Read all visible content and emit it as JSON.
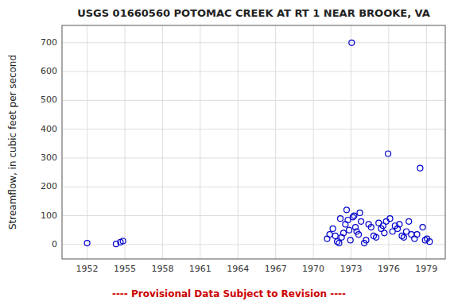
{
  "chart_data": {
    "type": "scatter",
    "title": "USGS 01660560 POTOMAC CREEK AT RT 1 NEAR BROOKE, VA",
    "ylabel": "Streamflow, in cubic feet per second",
    "annotation": "---- Provisional Data Subject to Revision ----",
    "xlim": [
      1950.0,
      1980.5
    ],
    "ylim": [
      -50,
      760
    ],
    "xticks": [
      1952,
      1955,
      1958,
      1961,
      1964,
      1967,
      1970,
      1973,
      1976,
      1979
    ],
    "yticks": [
      0,
      100,
      200,
      300,
      400,
      500,
      600,
      700
    ],
    "color": "#0000cc",
    "marker": "circle-open",
    "grid": true,
    "x": [
      1952.0,
      1954.3,
      1954.65,
      1954.85,
      1971.1,
      1971.3,
      1971.55,
      1971.75,
      1971.9,
      1972.05,
      1972.15,
      1972.25,
      1972.4,
      1972.55,
      1972.65,
      1972.75,
      1972.85,
      1972.95,
      1973.05,
      1973.15,
      1973.25,
      1973.35,
      1973.45,
      1973.6,
      1973.7,
      1973.8,
      1974.05,
      1974.2,
      1974.4,
      1974.6,
      1974.8,
      1975.0,
      1975.2,
      1975.4,
      1975.55,
      1975.65,
      1975.8,
      1975.95,
      1976.1,
      1976.3,
      1976.5,
      1976.7,
      1976.85,
      1977.05,
      1977.2,
      1977.4,
      1977.6,
      1977.8,
      1978.05,
      1978.25,
      1978.5,
      1978.7,
      1978.9,
      1979.05,
      1979.25
    ],
    "values": [
      5,
      2,
      8,
      12,
      20,
      35,
      55,
      30,
      10,
      5,
      90,
      25,
      40,
      70,
      120,
      85,
      50,
      15,
      700,
      95,
      100,
      60,
      45,
      35,
      110,
      80,
      5,
      15,
      70,
      60,
      30,
      25,
      75,
      55,
      65,
      40,
      80,
      315,
      90,
      45,
      65,
      55,
      70,
      30,
      25,
      45,
      80,
      35,
      20,
      35,
      265,
      60,
      15,
      20,
      10
    ]
  }
}
